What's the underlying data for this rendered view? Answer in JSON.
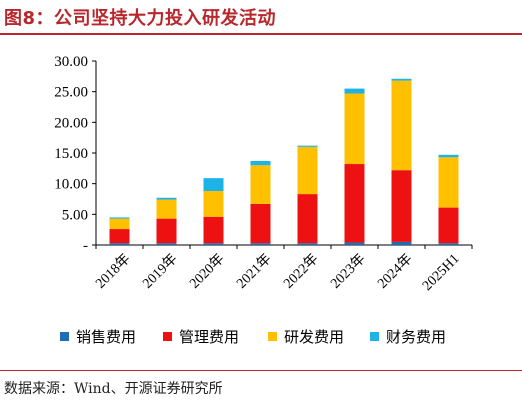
{
  "figure": {
    "title": "图8：公司坚持大力投入研发活动",
    "source": "数据来源：Wind、开源证券研究所"
  },
  "colors": {
    "accent": "#b8272c",
    "sales": "#1f6eb4",
    "management": "#ee1111",
    "rd": "#ffc000",
    "finance": "#1eb3e6"
  },
  "chart_data": {
    "type": "bar",
    "stacked": true,
    "categories": [
      "2018年",
      "2019年",
      "2020年",
      "2021年",
      "2022年",
      "2023年",
      "2024年",
      "2025H1"
    ],
    "series": [
      {
        "name": "销售费用",
        "color": "#1f6eb4",
        "values": [
          0.3,
          0.3,
          0.3,
          0.3,
          0.3,
          0.4,
          0.5,
          0.3
        ]
      },
      {
        "name": "管理费用",
        "color": "#ee1111",
        "values": [
          2.3,
          4.0,
          4.3,
          6.4,
          8.0,
          12.8,
          11.7,
          5.8
        ]
      },
      {
        "name": "研发费用",
        "color": "#ffc000",
        "values": [
          1.7,
          3.1,
          4.2,
          6.3,
          7.7,
          11.5,
          14.6,
          8.2
        ]
      },
      {
        "name": "财务费用",
        "color": "#1eb3e6",
        "values": [
          0.2,
          0.3,
          2.1,
          0.7,
          0.2,
          0.8,
          0.3,
          0.4
        ]
      }
    ],
    "yticks": [
      "-",
      "5.00",
      "10.00",
      "15.00",
      "20.00",
      "25.00",
      "30.00"
    ],
    "ylim": [
      0,
      30
    ],
    "grid": false,
    "legend": "bottom"
  }
}
